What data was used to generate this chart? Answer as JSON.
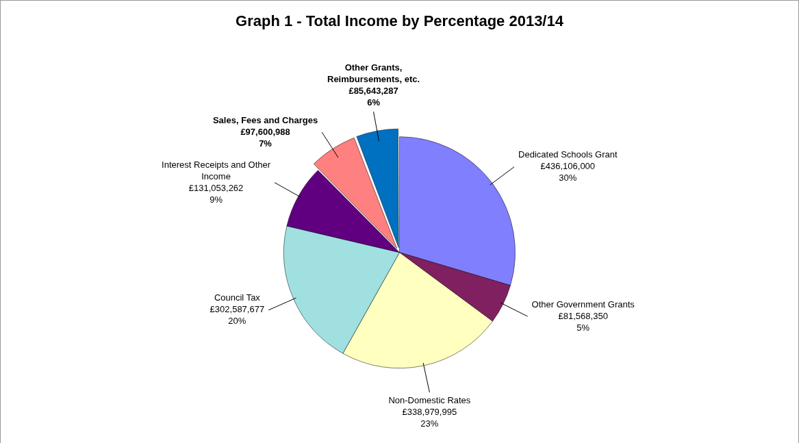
{
  "chart_data": {
    "type": "pie",
    "title": "Graph 1 - Total Income by Percentage 2013/14",
    "categories": [
      "Dedicated Schools Grant",
      "Other Government Grants",
      "Non-Domestic Rates",
      "Council Tax",
      "Interest Receipts and Other Income",
      "Sales, Fees and Charges",
      "Other Grants, Reimbursements, etc."
    ],
    "values": [
      436106000,
      81568350,
      338979995,
      302587677,
      131053262,
      97600988,
      85643287
    ],
    "value_labels": [
      "£436,106,000\n30%",
      "£81,568,350\n5%",
      "£338,979,995\n23%",
      "£302,587,677\n20%",
      "£131,053,262\n9%",
      "£97,600,988\n7%",
      "£85,643,287\n6%"
    ],
    "colors": [
      "#8080ff",
      "#802060",
      "#ffffc0",
      "#a0e0e0",
      "#600080",
      "#ff8080",
      "#0070c0"
    ],
    "legend": false
  }
}
